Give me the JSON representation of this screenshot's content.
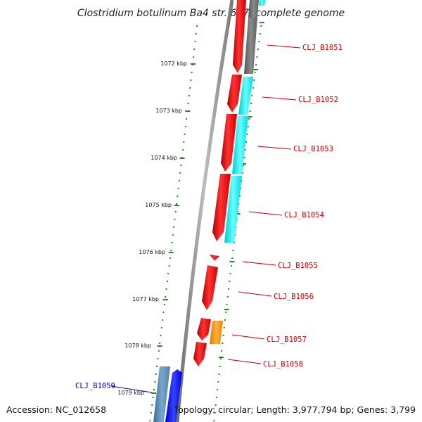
{
  "title": "Clostridium botulinum Ba4 str. 657, complete genome",
  "footer": {
    "accession": "Accession: NC_012658",
    "summary": "Topology: circular; Length: 3,977,794 bp; Genes: 3,799"
  },
  "scale_labels": [
    "1072 kbp",
    "1073 kbp",
    "1074 kbp",
    "1075 kbp",
    "1076 kbp",
    "1077 kbp",
    "1078 kbp",
    "1079 kbp"
  ],
  "genes": [
    {
      "name": "CLJ_B1051",
      "color": "#cc0000"
    },
    {
      "name": "CLJ_B1052",
      "color": "#cc0000"
    },
    {
      "name": "CLJ_B1053",
      "color": "#cc0000"
    },
    {
      "name": "CLJ_B1054",
      "color": "#cc0000"
    },
    {
      "name": "CLJ_B1055",
      "color": "#cc0000"
    },
    {
      "name": "CLJ_B1056",
      "color": "#cc0000"
    },
    {
      "name": "CLJ_B1057",
      "color": "#cc0000"
    },
    {
      "name": "CLJ_B1058",
      "color": "#cc0000"
    },
    {
      "name": "CLJ_B1059",
      "color": "#0000cc"
    }
  ],
  "colors": {
    "cds_forward": "#ff0000",
    "cog_a": "#00ffff",
    "cog_b": "#808080",
    "cog_c": "#ff9900",
    "cds_reverse": "#0000ff",
    "cog_d": "#4f7fa8",
    "backbone": "#808080",
    "gc_dots": "#228b22"
  }
}
